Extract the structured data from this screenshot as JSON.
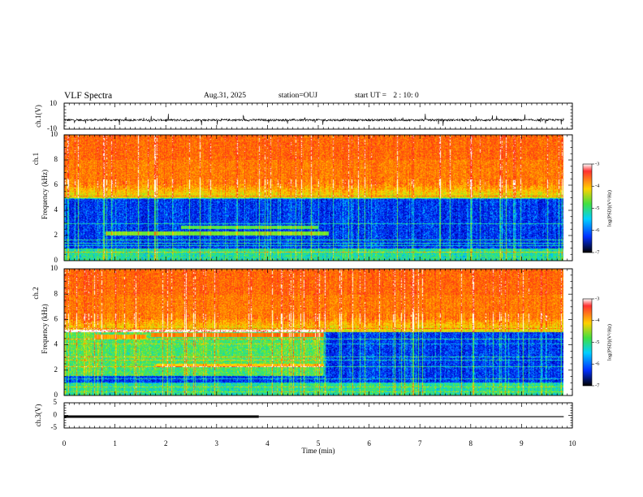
{
  "header": {
    "title": "VLF Spectra",
    "date": "Aug.31, 2025",
    "station": "station=OUJ",
    "start_label": "start UT =",
    "start_time": "2 : 10: 0"
  },
  "chart_data": [
    {
      "id": "ch1-waveform",
      "type": "line",
      "ylabel": "ch.1(V)",
      "ylim": [
        -10,
        10
      ],
      "yticks": [
        "10",
        "-10"
      ],
      "xlim": [
        0,
        10
      ],
      "baseline": -3,
      "noise_amplitude": 0.8
    },
    {
      "id": "ch1-spectrogram",
      "type": "heatmap",
      "ylabel_top": "ch.1",
      "ylabel": "Frequency (kHz)",
      "ylim": [
        0,
        10
      ],
      "yticks": [
        "0",
        "2",
        "4",
        "6",
        "8",
        "10"
      ],
      "xlim": [
        0,
        10
      ],
      "data_xmax": 9.83,
      "colorbar": {
        "label": "log(PSD)(V²/Hz)",
        "range": [
          -7,
          -3
        ],
        "ticks": [
          "-3",
          "-4",
          "-5",
          "-6",
          "-7"
        ]
      }
    },
    {
      "id": "ch2-spectrogram",
      "type": "heatmap",
      "ylabel_top": "ch.2",
      "ylabel": "Frequency (kHz)",
      "ylim": [
        0,
        10
      ],
      "yticks": [
        "0",
        "2",
        "4",
        "6",
        "8",
        "10"
      ],
      "xlim": [
        0,
        10
      ],
      "data_xmax": 9.83,
      "colorbar": {
        "label": "log(PSD)(V²/Hz)",
        "range": [
          -7,
          -3
        ],
        "ticks": [
          "-3",
          "-4",
          "-5",
          "-6",
          "-7"
        ]
      }
    },
    {
      "id": "ch3-trace",
      "type": "line",
      "ylabel": "ch.3(V)",
      "ylim": [
        -5,
        5
      ],
      "yticks": [
        "5",
        "0",
        "-5"
      ],
      "xlim": [
        0,
        10
      ],
      "xlabel": "Time (min)",
      "xticks": [
        "0",
        "1",
        "2",
        "3",
        "4",
        "5",
        "6",
        "7",
        "8",
        "9",
        "10"
      ],
      "segments": [
        {
          "x": [
            0,
            3.83
          ],
          "y": -0.5,
          "weight": "thick"
        },
        {
          "x": [
            3.83,
            9.83
          ],
          "y": -0.5,
          "weight": "thin"
        }
      ]
    }
  ]
}
